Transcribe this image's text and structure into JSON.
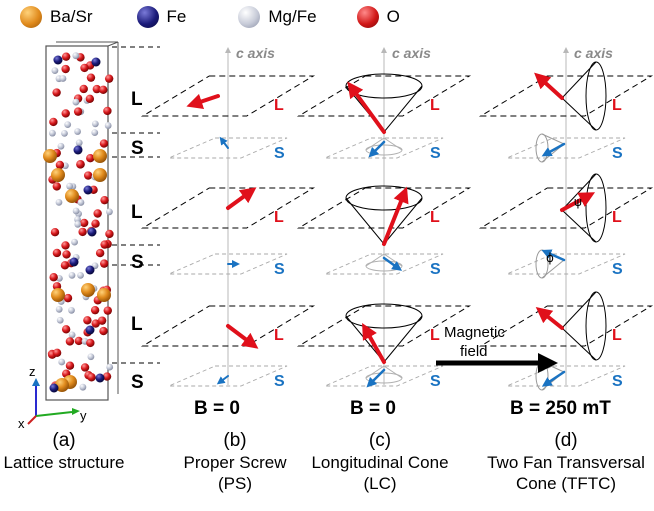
{
  "legend": [
    {
      "label": "Ba/Sr",
      "icon": "ba-sr-atom-icon",
      "color": "#e08a1c"
    },
    {
      "label": "Fe",
      "icon": "fe-atom-icon",
      "color": "#1b1b7a"
    },
    {
      "label": "Mg/Fe",
      "icon": "mg-fe-atom-icon",
      "color": "#c7cbd8"
    },
    {
      "label": "O",
      "icon": "o-atom-icon",
      "color": "#d11818"
    }
  ],
  "layers_big": [
    "L",
    "S",
    "L",
    "S",
    "L",
    "S"
  ],
  "layer_small": {
    "L": "L",
    "S": "S"
  },
  "axis": {
    "c_axis": "c axis",
    "z": "z",
    "y": "y",
    "x": "x"
  },
  "fields": {
    "b": "B = 0",
    "c": "B = 0",
    "d": "B = 250 mT"
  },
  "arrow_label": [
    "Magnetic",
    "field"
  ],
  "angles": {
    "psi": "ψ",
    "phi": "ϕ"
  },
  "captions": [
    {
      "tag": "(a)",
      "lines": [
        "Lattice structure"
      ]
    },
    {
      "tag": "(b)",
      "lines": [
        "Proper Screw",
        "(PS)"
      ]
    },
    {
      "tag": "(c)",
      "lines": [
        "Longitudinal Cone",
        "(LC)"
      ]
    },
    {
      "tag": "(d)",
      "lines": [
        "Two Fan Transversal",
        "Cone (TFTC)"
      ]
    }
  ],
  "colors": {
    "red": "#e0101b",
    "blue": "#1a73c2",
    "grey": "#a8a8a8"
  }
}
